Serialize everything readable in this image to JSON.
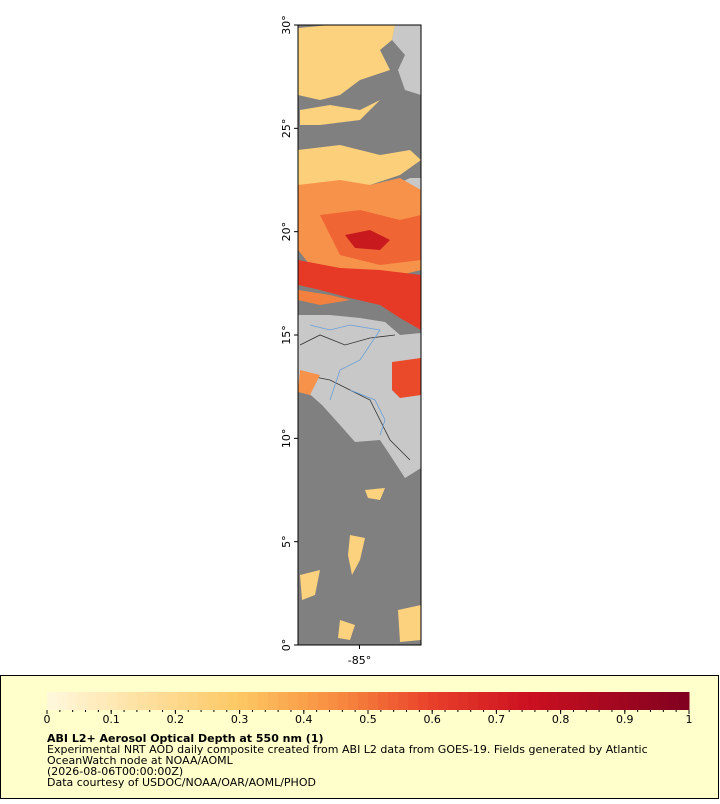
{
  "map": {
    "xlim": [
      -88,
      -82
    ],
    "ylim": [
      0,
      30
    ],
    "xticks": [
      {
        "value": -85,
        "label": "-85°"
      }
    ],
    "yticks": [
      {
        "value": 0,
        "label": "0°"
      },
      {
        "value": 5,
        "label": "5°"
      },
      {
        "value": 10,
        "label": "10°"
      },
      {
        "value": 15,
        "label": "15°"
      },
      {
        "value": 20,
        "label": "20°"
      },
      {
        "value": 25,
        "label": "25°"
      },
      {
        "value": 30,
        "label": "30°"
      }
    ]
  },
  "legend": {
    "title": "ABI L2+ Aerosol Optical Depth at 550 nm (1)",
    "lines": [
      "Experimental NRT AOD daily composite created from ABI L2 data from GOES-19. Fields generated by Atlantic",
      "OceanWatch node at NOAA/AOML",
      "(2026-08-06T00:00:00Z)",
      "Data courtesy of USDOC/NOAA/OAR/AOML/PHOD"
    ],
    "colorbar": {
      "lim": [
        0,
        1
      ],
      "ticks": [
        0,
        0.1,
        0.2,
        0.3,
        0.4,
        0.5,
        0.6,
        0.7,
        0.8,
        0.9,
        1
      ]
    }
  }
}
